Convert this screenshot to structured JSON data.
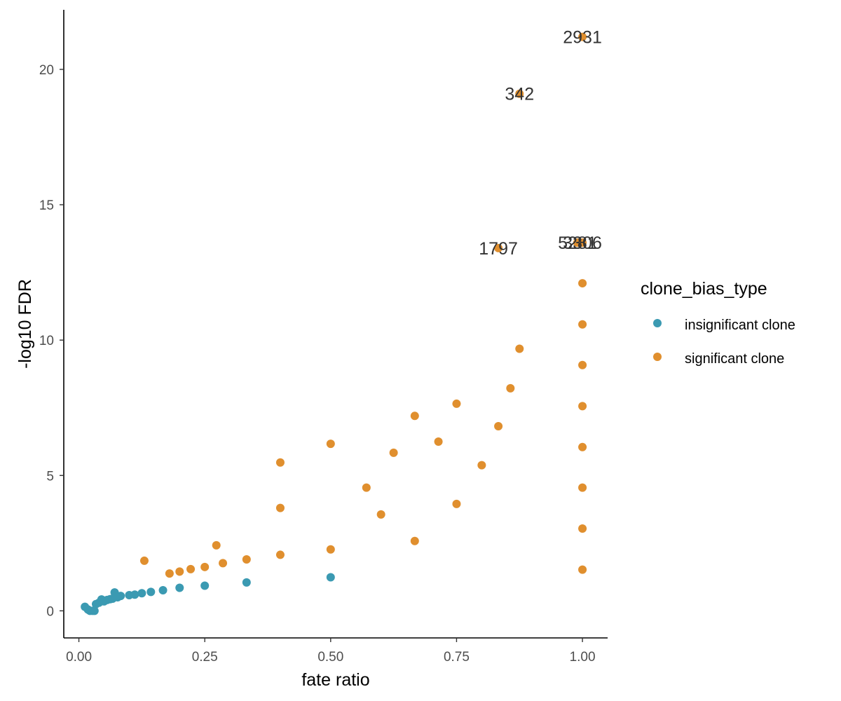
{
  "chart_data": {
    "type": "scatter",
    "xlabel": "fate ratio",
    "ylabel": "-log10 FDR",
    "xlim": [
      -0.03,
      1.05
    ],
    "ylim": [
      -1.0,
      22.2
    ],
    "x_ticks": [
      0.0,
      0.25,
      0.5,
      0.75,
      1.0
    ],
    "x_tick_labels": [
      "0.00",
      "0.25",
      "0.50",
      "0.75",
      "1.00"
    ],
    "y_ticks": [
      0,
      5,
      10,
      15,
      20
    ],
    "y_tick_labels": [
      "0",
      "5",
      "10",
      "15",
      "20"
    ],
    "grid": false,
    "legend": {
      "title": "clone_bias_type",
      "position": "right"
    },
    "series": [
      {
        "name": "insignificant clone",
        "color": "#3b9ab2",
        "points": [
          {
            "x": 0.012,
            "y": 0.15
          },
          {
            "x": 0.018,
            "y": 0.05
          },
          {
            "x": 0.022,
            "y": 0.0
          },
          {
            "x": 0.027,
            "y": 0.0
          },
          {
            "x": 0.031,
            "y": 0.0
          },
          {
            "x": 0.034,
            "y": 0.25
          },
          {
            "x": 0.04,
            "y": 0.3
          },
          {
            "x": 0.045,
            "y": 0.42
          },
          {
            "x": 0.05,
            "y": 0.35
          },
          {
            "x": 0.056,
            "y": 0.4
          },
          {
            "x": 0.062,
            "y": 0.43
          },
          {
            "x": 0.067,
            "y": 0.45
          },
          {
            "x": 0.071,
            "y": 0.68
          },
          {
            "x": 0.077,
            "y": 0.5
          },
          {
            "x": 0.083,
            "y": 0.55
          },
          {
            "x": 0.1,
            "y": 0.58
          },
          {
            "x": 0.111,
            "y": 0.6
          },
          {
            "x": 0.125,
            "y": 0.65
          },
          {
            "x": 0.143,
            "y": 0.7
          },
          {
            "x": 0.167,
            "y": 0.76
          },
          {
            "x": 0.2,
            "y": 0.85
          },
          {
            "x": 0.25,
            "y": 0.93
          },
          {
            "x": 0.333,
            "y": 1.05
          },
          {
            "x": 0.5,
            "y": 1.24
          }
        ]
      },
      {
        "name": "significant clone",
        "color": "#e08f2e",
        "points": [
          {
            "x": 0.13,
            "y": 1.85
          },
          {
            "x": 0.18,
            "y": 1.38
          },
          {
            "x": 0.2,
            "y": 1.45
          },
          {
            "x": 0.222,
            "y": 1.54
          },
          {
            "x": 0.25,
            "y": 1.62
          },
          {
            "x": 0.273,
            "y": 2.42
          },
          {
            "x": 0.286,
            "y": 1.76
          },
          {
            "x": 0.333,
            "y": 1.9
          },
          {
            "x": 0.4,
            "y": 2.07
          },
          {
            "x": 0.4,
            "y": 3.8
          },
          {
            "x": 0.4,
            "y": 5.48
          },
          {
            "x": 0.5,
            "y": 2.27
          },
          {
            "x": 0.5,
            "y": 6.17
          },
          {
            "x": 0.571,
            "y": 4.55
          },
          {
            "x": 0.6,
            "y": 3.56
          },
          {
            "x": 0.625,
            "y": 5.84
          },
          {
            "x": 0.667,
            "y": 2.58
          },
          {
            "x": 0.667,
            "y": 7.2
          },
          {
            "x": 0.714,
            "y": 6.25
          },
          {
            "x": 0.75,
            "y": 3.95
          },
          {
            "x": 0.75,
            "y": 7.65
          },
          {
            "x": 0.8,
            "y": 5.38
          },
          {
            "x": 0.833,
            "y": 6.82
          },
          {
            "x": 0.857,
            "y": 8.22
          },
          {
            "x": 0.875,
            "y": 9.68
          },
          {
            "x": 1.0,
            "y": 1.52
          },
          {
            "x": 1.0,
            "y": 3.04
          },
          {
            "x": 1.0,
            "y": 4.55
          },
          {
            "x": 1.0,
            "y": 6.05
          },
          {
            "x": 1.0,
            "y": 7.56
          },
          {
            "x": 1.0,
            "y": 9.08
          },
          {
            "x": 1.0,
            "y": 10.58
          },
          {
            "x": 1.0,
            "y": 12.1
          },
          {
            "x": 0.833,
            "y": 13.4,
            "label": "1797"
          },
          {
            "x": 0.99,
            "y": 13.6,
            "label": "5281"
          },
          {
            "x": 1.0,
            "y": 13.6,
            "label": "3306"
          },
          {
            "x": 0.875,
            "y": 19.1,
            "label": "342"
          },
          {
            "x": 1.0,
            "y": 21.2,
            "label": "2931"
          }
        ]
      }
    ]
  }
}
